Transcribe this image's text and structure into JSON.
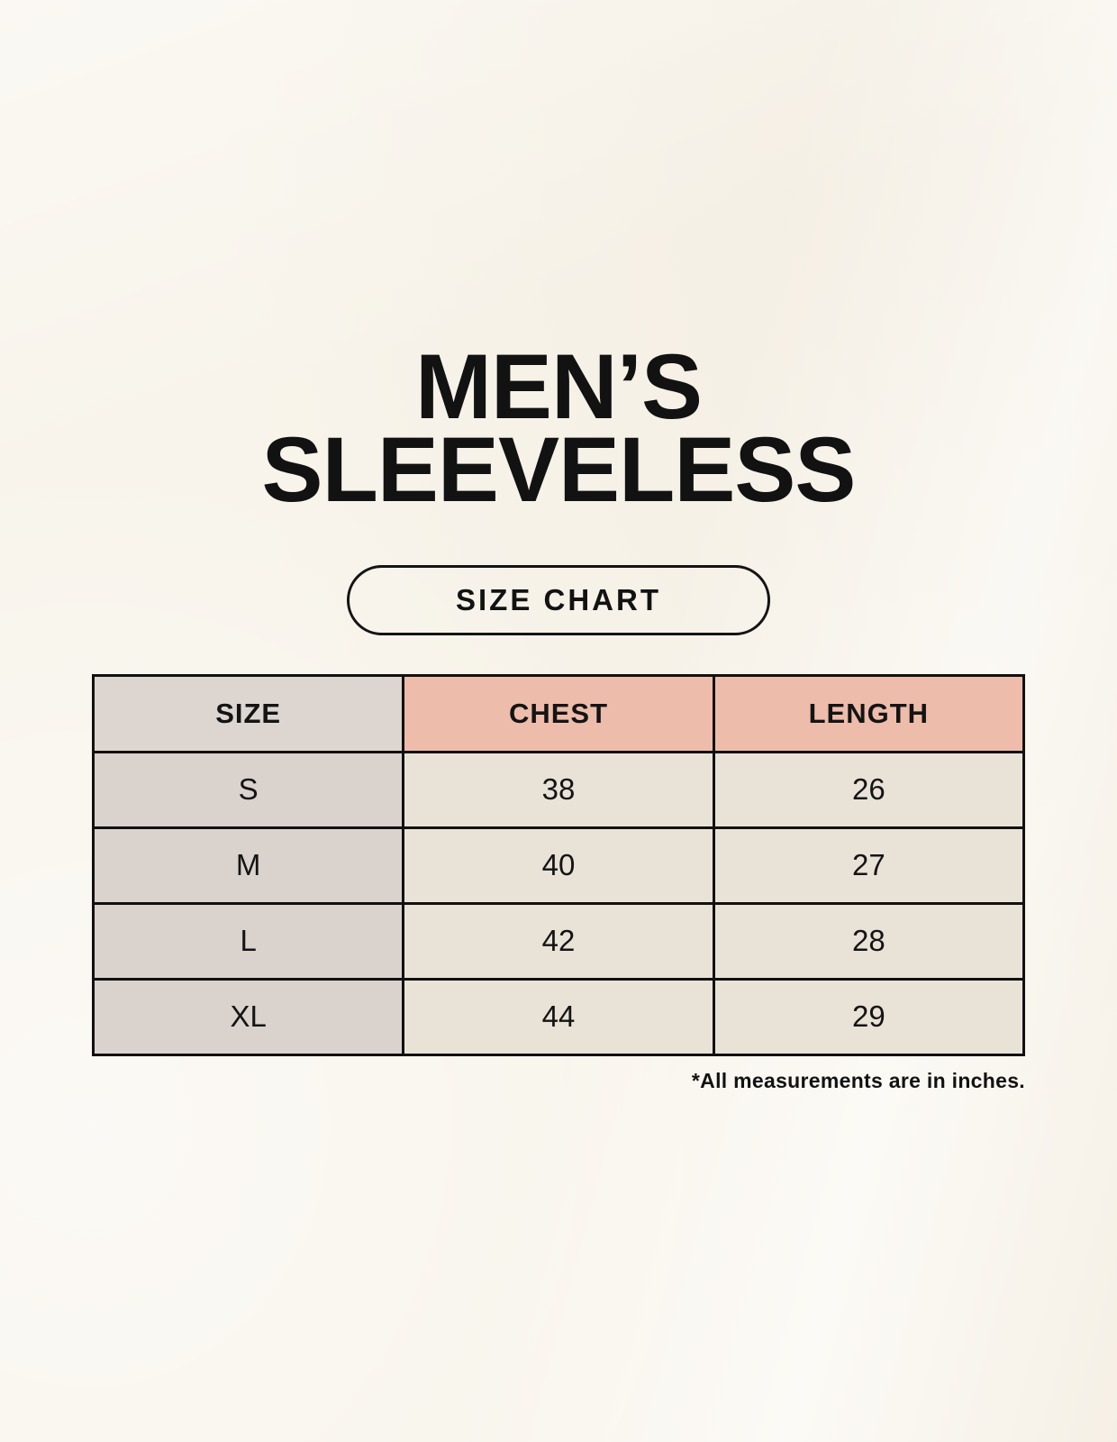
{
  "title": {
    "line1": "MEN’S",
    "line2": "SLEEVELESS"
  },
  "size_chart_button": {
    "label": "SIZE CHART"
  },
  "table": {
    "headers": [
      "SIZE",
      "CHEST",
      "LENGTH"
    ],
    "rows": [
      {
        "size": "S",
        "chest": "38",
        "length": "26"
      },
      {
        "size": "M",
        "chest": "40",
        "length": "27"
      },
      {
        "size": "L",
        "chest": "42",
        "length": "28"
      },
      {
        "size": "XL",
        "chest": "44",
        "length": "29"
      }
    ]
  },
  "footnote": "*All measurements are in inches.",
  "colors": {
    "background": "#f8f4eb",
    "header_size_bg": "#dcd5d0",
    "header_accent_bg": "#eebcab",
    "size_column_bg": "#d9d2cd",
    "data_cell_bg": "#e9e2d7",
    "border": "#111111",
    "text": "#121212"
  }
}
